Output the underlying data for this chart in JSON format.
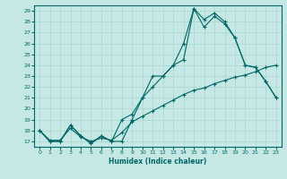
{
  "xlabel": "Humidex (Indice chaleur)",
  "bg_color": "#c5e8e5",
  "line_color": "#006666",
  "grid_color": "#a8d5d0",
  "xlim": [
    -0.5,
    23.5
  ],
  "ylim": [
    16.5,
    29.5
  ],
  "xticks": [
    0,
    1,
    2,
    3,
    4,
    5,
    6,
    7,
    8,
    9,
    10,
    11,
    12,
    13,
    14,
    15,
    16,
    17,
    18,
    19,
    20,
    21,
    22,
    23
  ],
  "yticks": [
    17,
    18,
    19,
    20,
    21,
    22,
    23,
    24,
    25,
    26,
    27,
    28,
    29
  ],
  "line1_x": [
    0,
    1,
    2,
    3,
    4,
    5,
    6,
    7,
    8,
    9,
    10,
    11,
    12,
    13,
    14,
    15,
    16,
    17,
    18,
    19,
    20,
    21,
    22,
    23
  ],
  "line1_y": [
    18,
    17,
    17,
    18.5,
    17.5,
    16.8,
    17.5,
    17,
    17,
    19,
    21,
    23,
    23,
    24,
    24.5,
    29.2,
    27.5,
    28.5,
    27.8,
    26.5,
    24,
    23.8,
    22.5,
    21
  ],
  "line2_x": [
    0,
    1,
    2,
    3,
    4,
    5,
    6,
    7,
    8,
    9,
    10,
    11,
    12,
    13,
    14,
    15,
    16,
    17,
    18,
    19,
    20,
    21,
    22,
    23
  ],
  "line2_y": [
    18,
    17,
    17,
    18.5,
    17.5,
    16.8,
    17.5,
    17,
    19,
    19.5,
    21,
    22,
    23,
    24,
    26,
    29.2,
    28.2,
    28.8,
    28,
    26.5,
    24,
    23.8,
    22.5,
    21
  ],
  "line3_x": [
    0,
    1,
    2,
    3,
    4,
    5,
    6,
    7,
    8,
    9,
    10,
    11,
    12,
    13,
    14,
    15,
    16,
    17,
    18,
    19,
    20,
    21,
    22,
    23
  ],
  "line3_y": [
    18,
    17.1,
    17.1,
    18.2,
    17.4,
    17.0,
    17.3,
    17.1,
    17.8,
    18.8,
    19.3,
    19.8,
    20.3,
    20.8,
    21.3,
    21.7,
    21.9,
    22.3,
    22.6,
    22.9,
    23.1,
    23.4,
    23.8,
    24.0
  ]
}
